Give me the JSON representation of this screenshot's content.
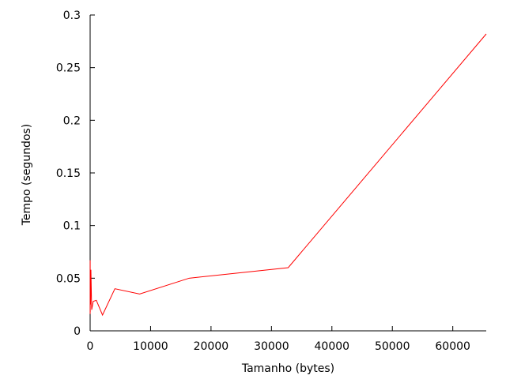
{
  "chart_data": {
    "type": "line",
    "xlabel": "Tamanho (bytes)",
    "ylabel": "Tempo (segundos)",
    "xlim": [
      0,
      65536
    ],
    "ylim": [
      0,
      0.3
    ],
    "x_ticks": [
      0,
      10000,
      20000,
      30000,
      40000,
      50000,
      60000
    ],
    "x_tick_labels": [
      "0",
      "10000",
      "20000",
      "30000",
      "40000",
      "50000",
      "60000"
    ],
    "y_ticks": [
      0,
      0.05,
      0.1,
      0.15,
      0.2,
      0.25,
      0.3
    ],
    "y_tick_labels": [
      "0",
      "0.05",
      "0.1",
      "0.15",
      "0.2",
      "0.25",
      "0.3"
    ],
    "grid": false,
    "legend": "none",
    "series": [
      {
        "color": "#ff0000",
        "x": [
          4,
          8,
          16,
          32,
          64,
          128,
          256,
          512,
          1024,
          2048,
          4096,
          8192,
          16384,
          32768,
          65536
        ],
        "y": [
          0.016,
          0.067,
          0.018,
          0.05,
          0.025,
          0.058,
          0.02,
          0.028,
          0.029,
          0.015,
          0.04,
          0.035,
          0.05,
          0.06,
          0.282
        ]
      }
    ]
  }
}
